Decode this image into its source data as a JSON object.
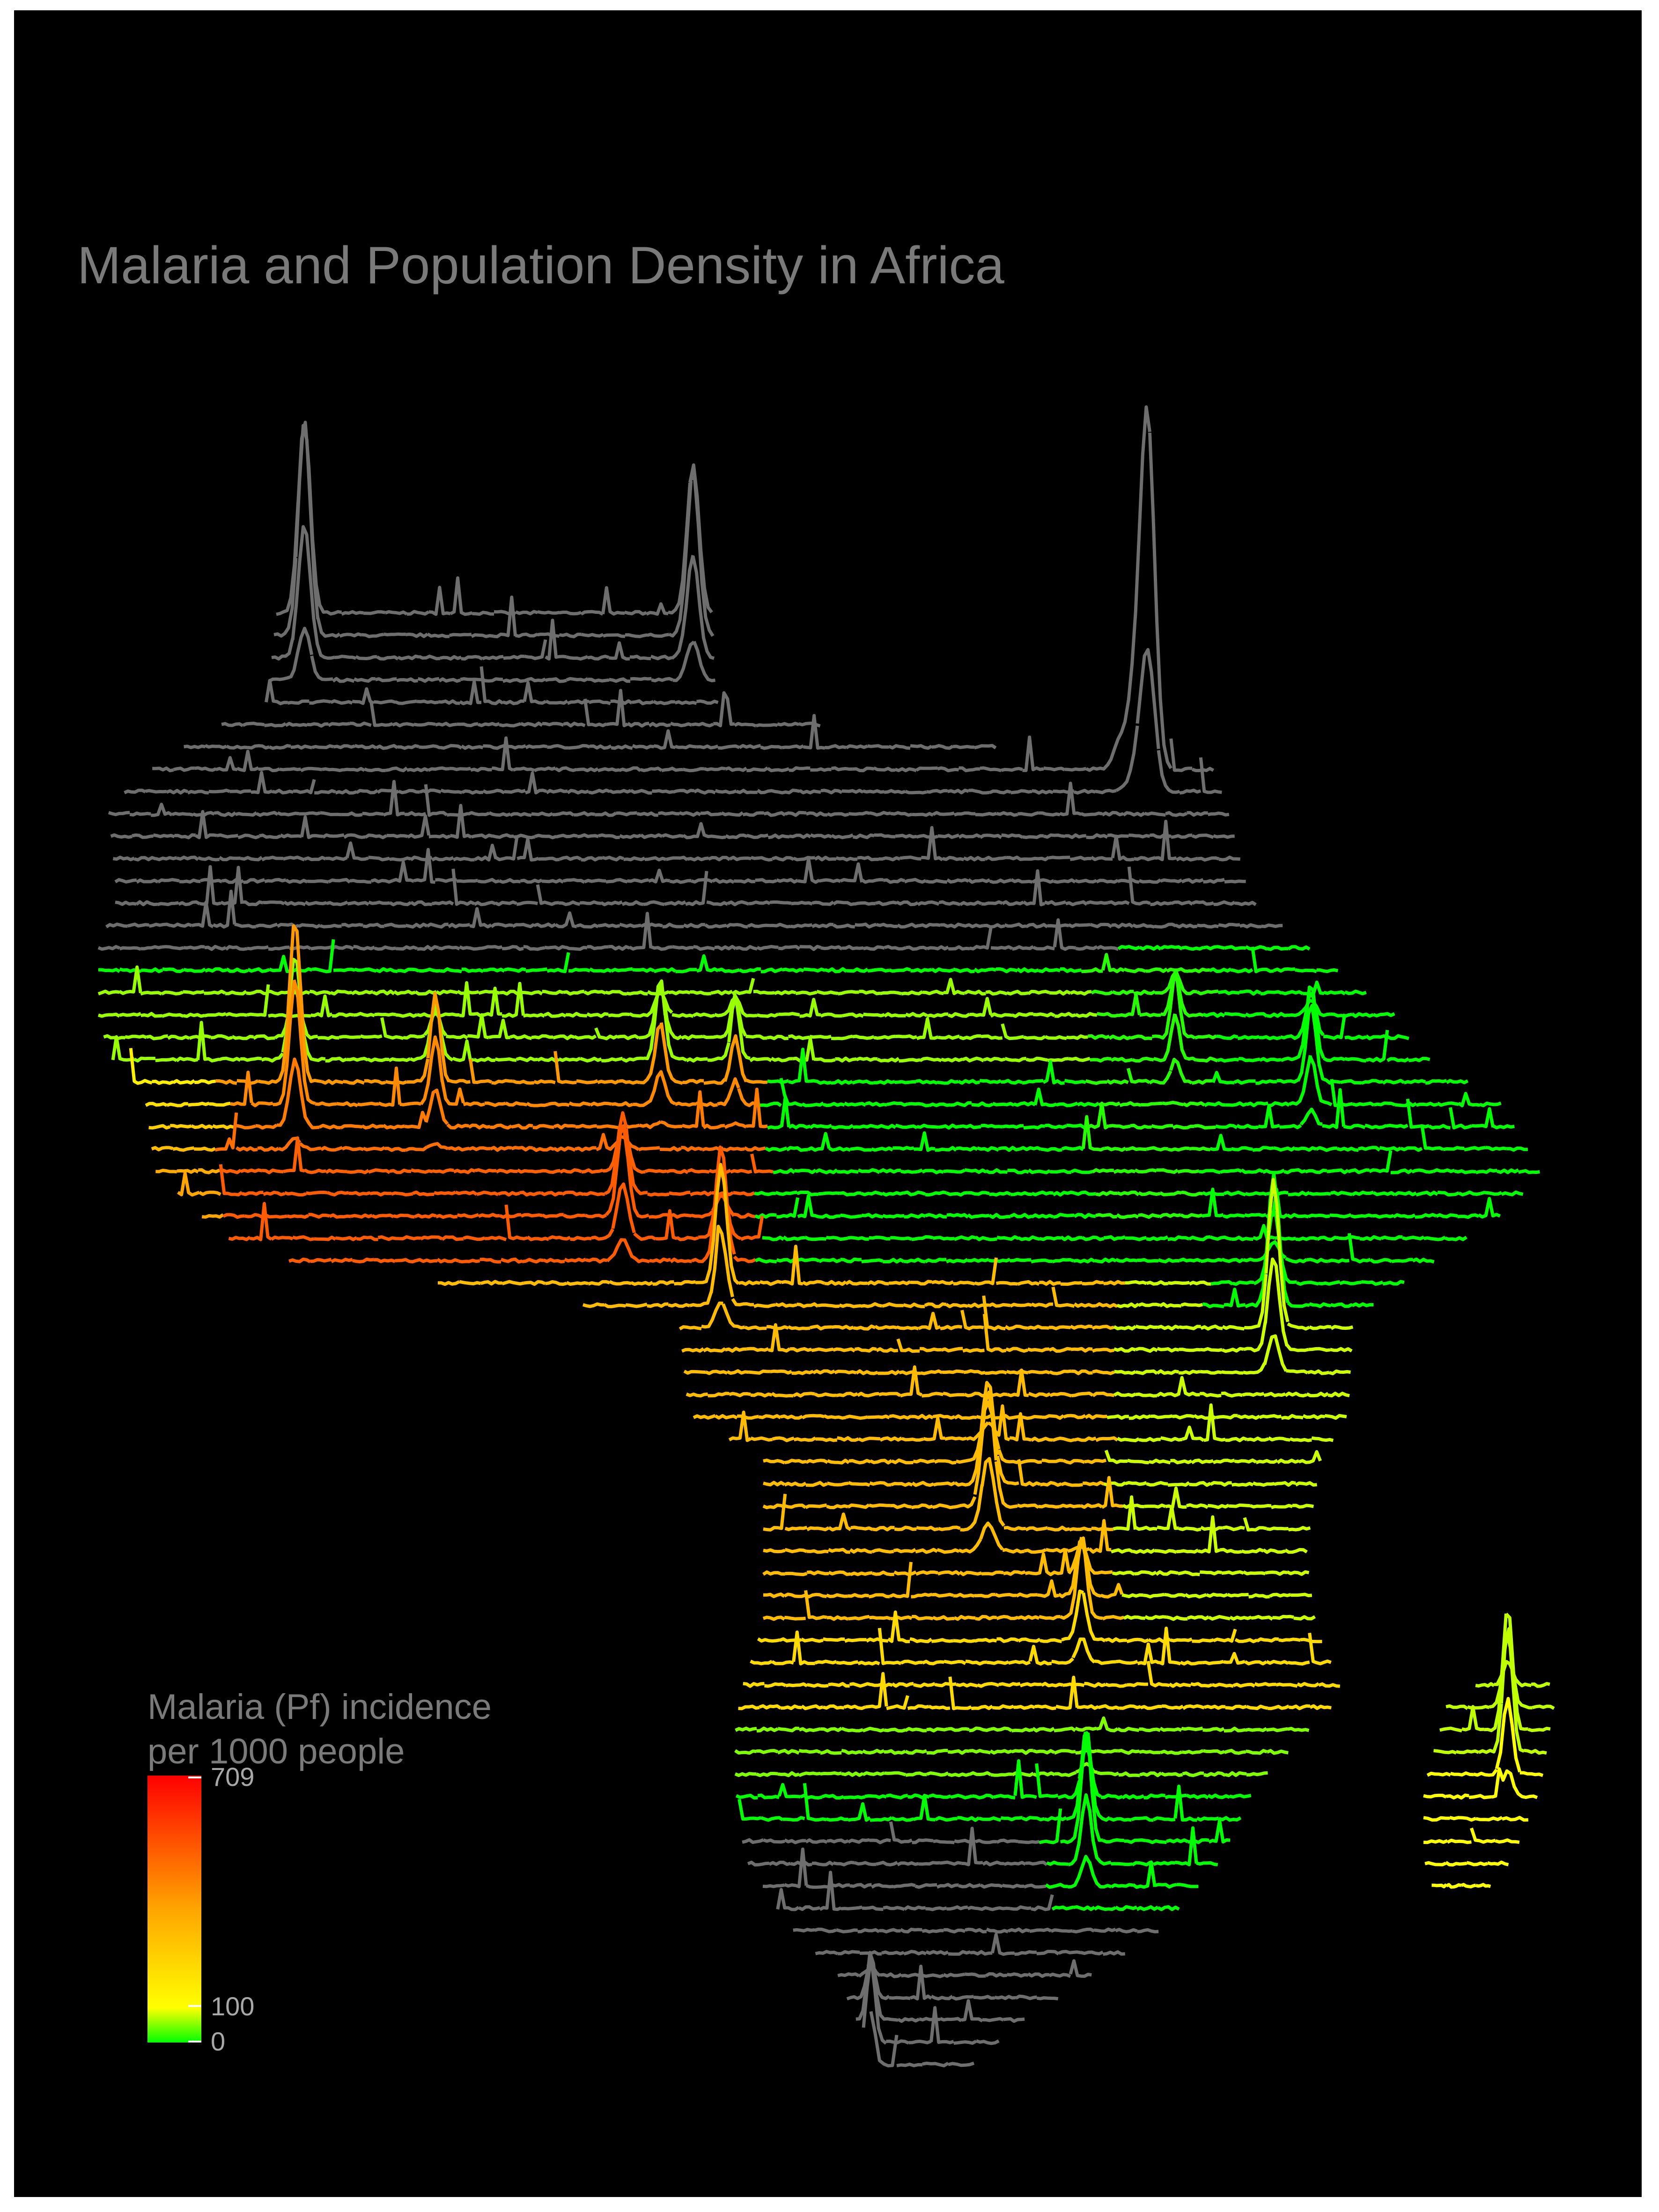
{
  "title": "Malaria and Population Density in Africa",
  "legend": {
    "title_line1": "Malaria (Pf) incidence",
    "title_line2": "per 1000 people",
    "max_label": "709",
    "mid_label": "100",
    "min_label": "0",
    "scale": {
      "min": 0,
      "mid": 100,
      "max": 709
    },
    "colors": {
      "low": "#00ff00",
      "mid": "#ffff00",
      "orange": "#ffa500",
      "high": "#ff0000",
      "no_data": "#6e6e6e"
    }
  },
  "map_data": {
    "type": "ridgeline-map",
    "region": "Africa",
    "ridge_rows": 66,
    "line_color_encodes": "Malaria (Pf) incidence per 1000 people",
    "peak_height_encodes": "population density"
  }
}
